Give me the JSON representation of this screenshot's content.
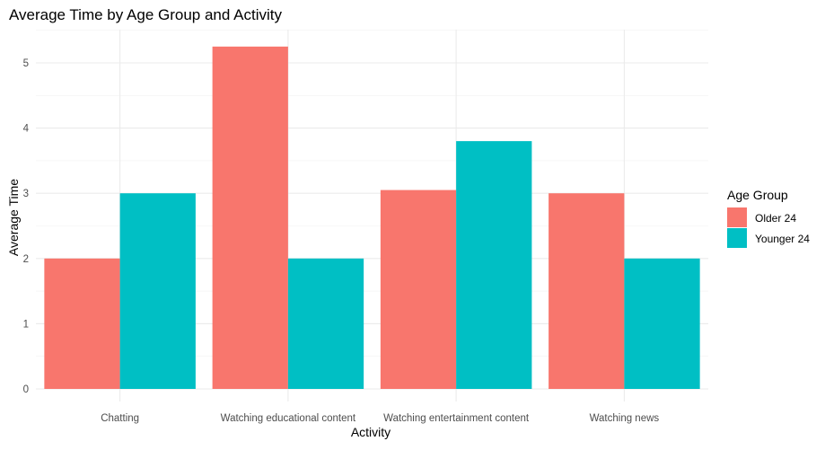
{
  "chart_data": {
    "type": "bar",
    "title": "Average Time by Age Group and Activity",
    "xlabel": "Activity",
    "ylabel": "Average Time",
    "categories": [
      "Chatting",
      "Watching educational content",
      "Watching entertainment content",
      "Watching news"
    ],
    "series": [
      {
        "name": "Older 24",
        "color": "#F8766D",
        "values": [
          2,
          5.25,
          3.05,
          3
        ]
      },
      {
        "name": "Younger 24",
        "color": "#00BFC4",
        "values": [
          3,
          2,
          3.8,
          2
        ]
      }
    ],
    "ylim": [
      0,
      5.5
    ],
    "yticks": [
      0,
      1,
      2,
      3,
      4,
      5
    ],
    "grid": true,
    "legend": {
      "title": "Age Group",
      "position": "right"
    }
  }
}
